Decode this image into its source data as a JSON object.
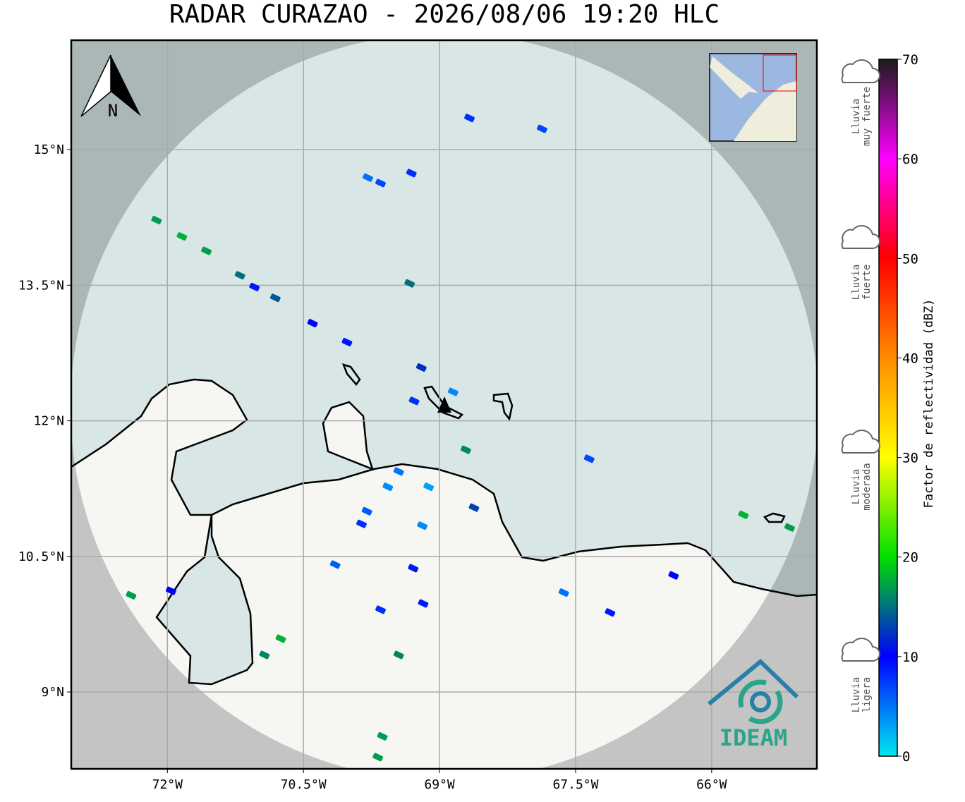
{
  "title": "RADAR CURAZAO - 2026/08/06 19:20 HLC",
  "map": {
    "lonlim": [
      -73.06,
      -64.84
    ],
    "latlim": [
      8.15,
      16.21
    ],
    "xticks": [
      {
        "value": -72,
        "label": "72°W"
      },
      {
        "value": -70.5,
        "label": "70.5°W"
      },
      {
        "value": -69,
        "label": "69°W"
      },
      {
        "value": -67.5,
        "label": "67.5°W"
      },
      {
        "value": -66,
        "label": "66°W"
      }
    ],
    "yticks": [
      {
        "value": 15,
        "label": "15°N"
      },
      {
        "value": 13.5,
        "label": "13.5°N"
      },
      {
        "value": 12,
        "label": "12°N"
      },
      {
        "value": 10.5,
        "label": "10.5°N"
      },
      {
        "value": 9,
        "label": "9°N"
      }
    ],
    "grid": true,
    "north_label": "N",
    "logo_text": "IDEAM",
    "echoes": [
      [
        -68.67,
        15.35,
        8
      ],
      [
        -67.87,
        15.23,
        7
      ],
      [
        -69.79,
        14.69,
        5
      ],
      [
        -69.65,
        14.63,
        7
      ],
      [
        -69.31,
        14.74,
        8
      ],
      [
        -72.12,
        14.22,
        17
      ],
      [
        -71.84,
        14.04,
        18
      ],
      [
        -71.57,
        13.88,
        17
      ],
      [
        -71.2,
        13.61,
        15
      ],
      [
        -71.04,
        13.48,
        9
      ],
      [
        -70.81,
        13.36,
        14
      ],
      [
        -70.4,
        13.08,
        10
      ],
      [
        -70.02,
        12.87,
        9
      ],
      [
        -69.33,
        13.52,
        15
      ],
      [
        -69.2,
        12.59,
        12
      ],
      [
        -68.85,
        12.32,
        4
      ],
      [
        -69.28,
        12.22,
        8
      ],
      [
        -68.71,
        11.68,
        16
      ],
      [
        -69.45,
        11.44,
        5
      ],
      [
        -69.57,
        11.27,
        4
      ],
      [
        -69.8,
        11.0,
        6
      ],
      [
        -69.86,
        10.86,
        8
      ],
      [
        -69.19,
        10.84,
        4
      ],
      [
        -69.29,
        10.37,
        9
      ],
      [
        -69.18,
        9.98,
        9
      ],
      [
        -69.65,
        9.91,
        8
      ],
      [
        -70.15,
        10.41,
        6
      ],
      [
        -71.96,
        10.12,
        10
      ],
      [
        -72.4,
        10.07,
        17
      ],
      [
        -70.75,
        9.59,
        18
      ],
      [
        -70.93,
        9.41,
        16
      ],
      [
        -69.45,
        9.41,
        16
      ],
      [
        -69.63,
        8.51,
        17
      ],
      [
        -69.68,
        8.28,
        17
      ],
      [
        -68.62,
        11.04,
        13
      ],
      [
        -67.35,
        11.58,
        7
      ],
      [
        -67.12,
        9.88,
        9
      ],
      [
        -66.42,
        10.29,
        10
      ],
      [
        -67.63,
        10.1,
        5
      ],
      [
        -65.14,
        10.82,
        17
      ],
      [
        -65.65,
        10.96,
        18
      ],
      [
        -69.12,
        11.27,
        3
      ]
    ]
  },
  "colorbar": {
    "label": "Factor de reflectividad (dBZ)",
    "lim": [
      0,
      70
    ],
    "ticks": [
      0,
      10,
      20,
      30,
      40,
      50,
      60,
      70
    ],
    "colors": [
      "#00e8f0",
      "#0000ff",
      "#00e000",
      "#ffff00",
      "#ff8c00",
      "#ff0000",
      "#ff00ff",
      "#1a1a1a"
    ]
  },
  "legend": [
    {
      "lines": [
        "Lluvia",
        "muy fuerte"
      ]
    },
    {
      "lines": [
        "Lluvia",
        "fuerte"
      ]
    },
    {
      "lines": [
        "Lluvia",
        "moderada"
      ]
    },
    {
      "lines": [
        "Lluvia",
        "ligera"
      ]
    }
  ]
}
